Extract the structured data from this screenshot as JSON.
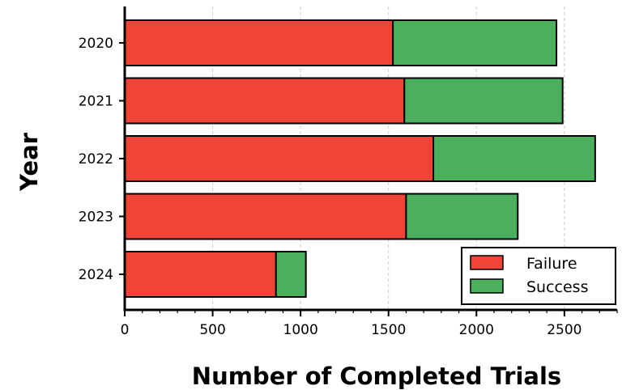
{
  "chart_data": {
    "type": "bar",
    "orientation": "horizontal",
    "stacked": true,
    "title": "",
    "xlabel": "Number of Completed Trials",
    "ylabel": "Year",
    "categories": [
      "2020",
      "2021",
      "2022",
      "2023",
      "2024"
    ],
    "series": [
      {
        "name": "Failure",
        "color": "#f04536",
        "values": [
          1525,
          1590,
          1755,
          1600,
          860
        ]
      },
      {
        "name": "Success",
        "color": "#4caf5e",
        "values": [
          930,
          900,
          920,
          635,
          170
        ]
      }
    ],
    "xlim": [
      0,
      2800
    ],
    "xticks": [
      0,
      500,
      1000,
      1500,
      2000,
      2500
    ],
    "xtick_labels": [
      "0",
      "500",
      "1000",
      "1500",
      "2000",
      "2500"
    ],
    "minor_tick_step": 100,
    "grid": "x-dashed",
    "legend_position": "lower-right"
  }
}
